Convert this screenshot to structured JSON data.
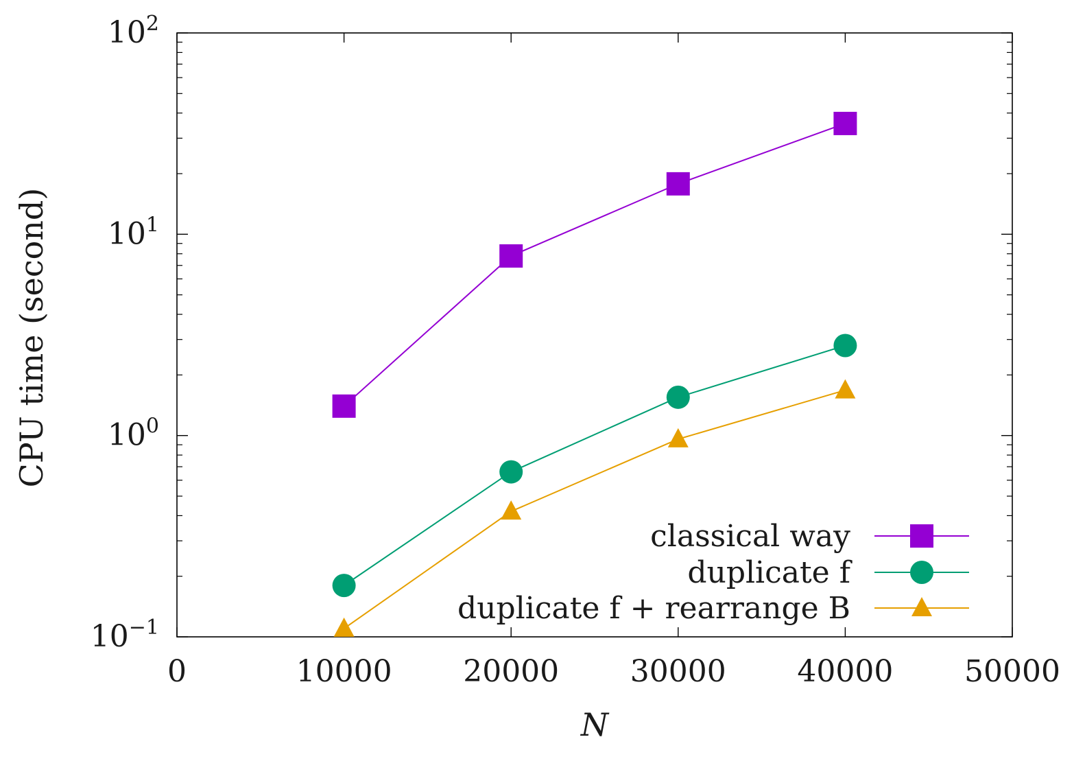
{
  "chart_data": {
    "type": "line",
    "xlabel": "N",
    "ylabel": "CPU time (second)",
    "xlim": [
      0,
      50000
    ],
    "ylim": [
      0.1,
      100
    ],
    "yscale": "log",
    "x_ticks": [
      0,
      10000,
      20000,
      30000,
      40000,
      50000
    ],
    "x_tick_labels": [
      "0",
      "10000",
      "20000",
      "30000",
      "40000",
      "50000"
    ],
    "y_ticks": [
      0.1,
      1,
      10,
      100
    ],
    "y_tick_labels": [
      {
        "base": "10",
        "exp": "−1"
      },
      {
        "base": "10",
        "exp": "0"
      },
      {
        "base": "10",
        "exp": "1"
      },
      {
        "base": "10",
        "exp": "2"
      }
    ],
    "grid": false,
    "legend_position": "bottom-right",
    "series": [
      {
        "name": "classical way",
        "color": "#9400d3",
        "marker": "square",
        "x": [
          10000,
          20000,
          30000,
          40000
        ],
        "y": [
          1.4,
          7.8,
          17.8,
          35.5
        ]
      },
      {
        "name": "duplicate f",
        "color": "#009e73",
        "marker": "circle",
        "x": [
          10000,
          20000,
          30000,
          40000
        ],
        "y": [
          0.18,
          0.66,
          1.55,
          2.8
        ]
      },
      {
        "name": "duplicate f + rearrange B",
        "color": "#e69f00",
        "marker": "triangle",
        "x": [
          10000,
          20000,
          30000,
          40000
        ],
        "y": [
          0.11,
          0.42,
          0.96,
          1.68
        ]
      }
    ]
  }
}
